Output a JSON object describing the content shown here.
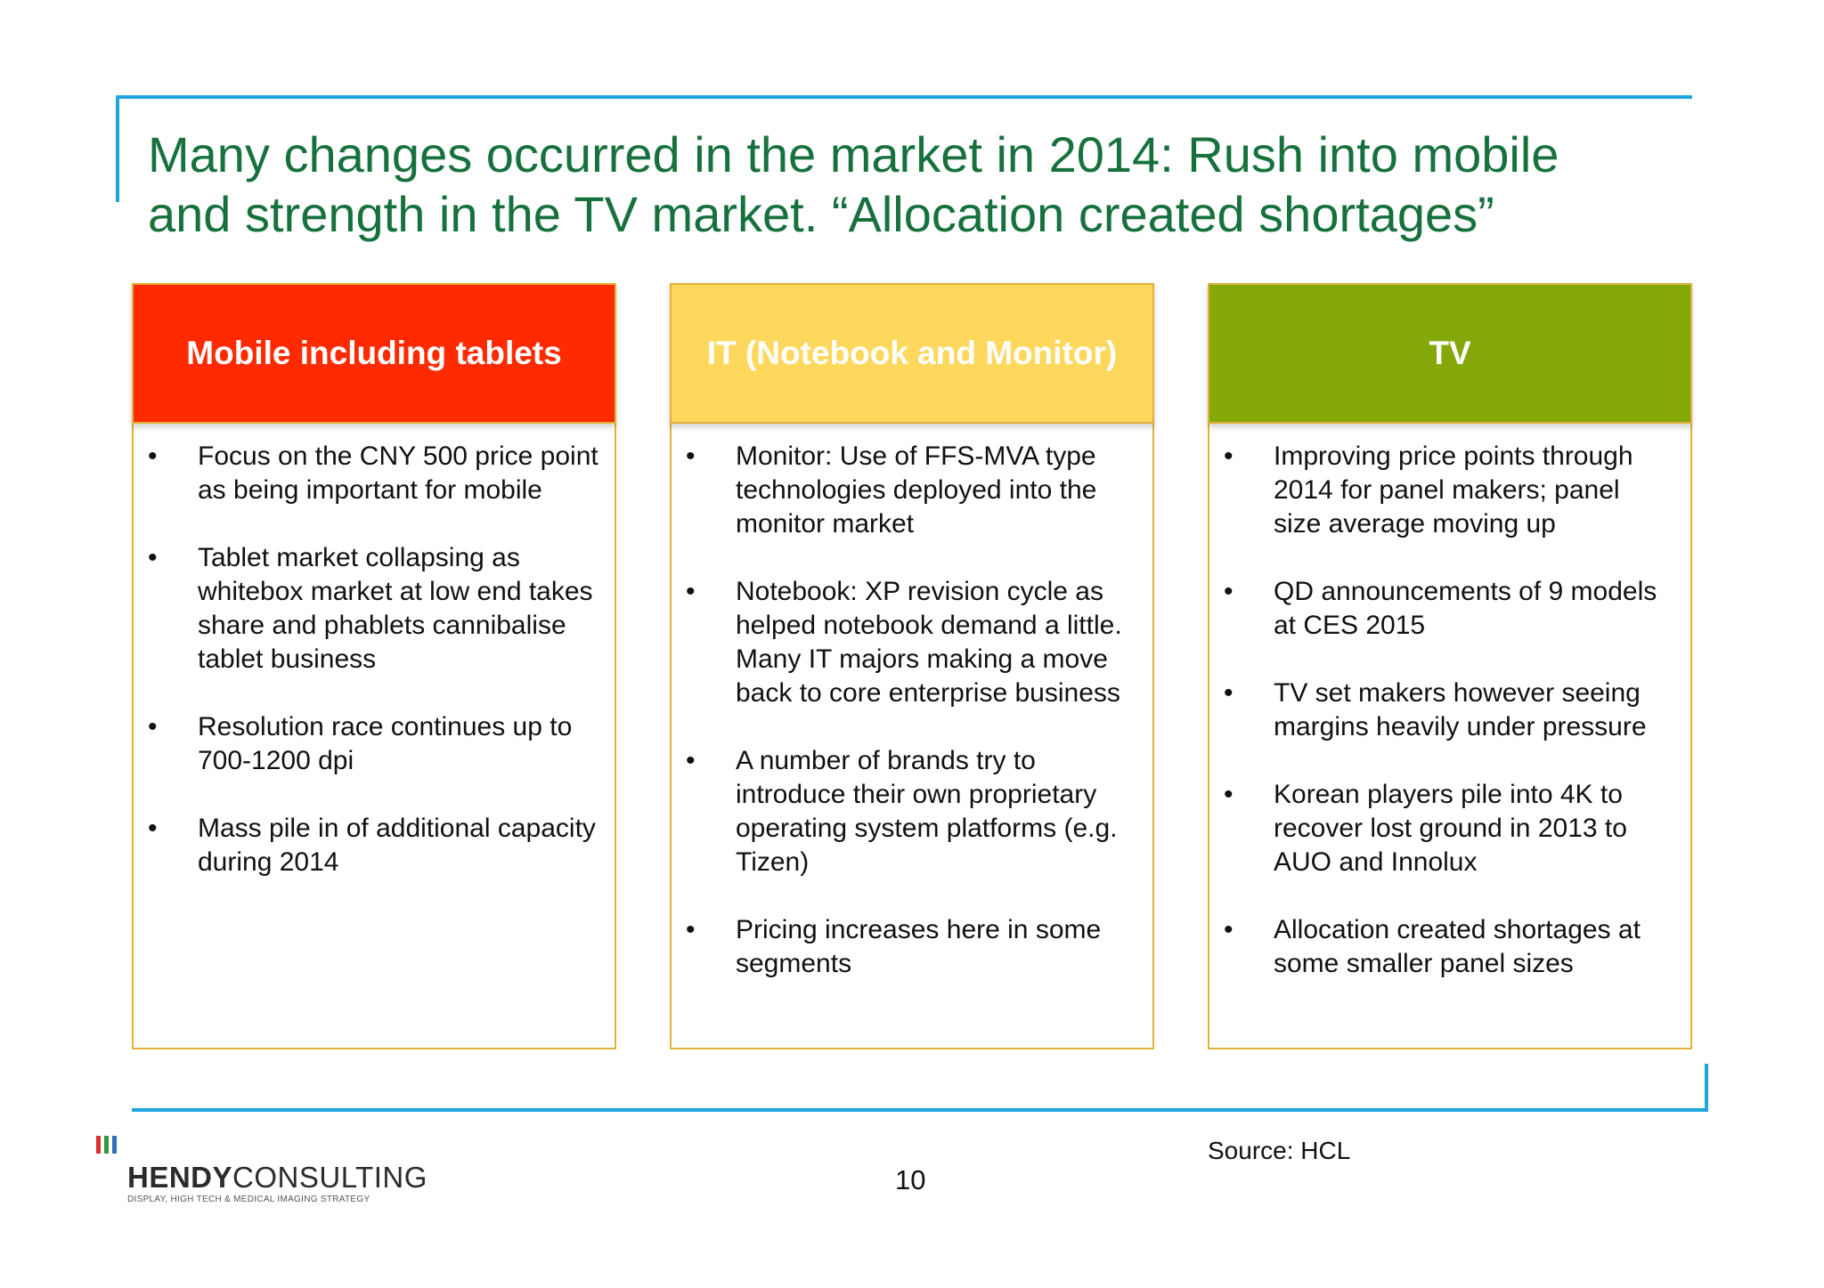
{
  "slide": {
    "title_lines": [
      "Many changes occurred in the market in 2014: Rush into mobile",
      "and strength in the TV market. “Allocation created shortages”"
    ],
    "page_number": "10",
    "source": "Source: HCL"
  },
  "columns": [
    {
      "header": "Mobile including tablets",
      "header_color": "#ff2a00",
      "bullets": [
        "Focus on the CNY 500 price point as being important for mobile",
        "Tablet market collapsing as whitebox market at low end takes share and phablets cannibalise tablet business",
        "Resolution race continues up to 700-1200 dpi",
        "Mass pile in of additional capacity during 2014"
      ]
    },
    {
      "header": "IT (Notebook and Monitor)",
      "header_color": "#fdd85d",
      "bullets": [
        "Monitor: Use of FFS-MVA type technologies deployed into the monitor market",
        "Notebook: XP revision cycle as helped notebook demand a little. Many IT majors making a move back to core enterprise business",
        "A number of brands try to introduce their own proprietary operating system platforms (e.g. Tizen)",
        "Pricing increases here in some segments"
      ]
    },
    {
      "header": "TV",
      "header_color": "#84a80a",
      "bullets": [
        "Improving price points through 2014 for panel makers; panel size average moving up",
        "QD announcements of 9 models at CES 2015",
        "TV set makers however seeing margins heavily under pressure",
        "Korean players pile into 4K to recover lost ground in 2013 to AUO and Innolux",
        "Allocation created shortages at some smaller panel sizes"
      ]
    }
  ],
  "logo": {
    "name_bold": "HENDY",
    "name_light": "CONSULTING",
    "tagline": "DISPLAY, HIGH TECH & MEDICAL IMAGING STRATEGY",
    "bar_colors": [
      "#d9302c",
      "#2f9a3f",
      "#2f6fc0"
    ]
  },
  "colors": {
    "title": "#16713d",
    "rule": "#1ea6e0",
    "panel_border": "#e0b23a"
  }
}
